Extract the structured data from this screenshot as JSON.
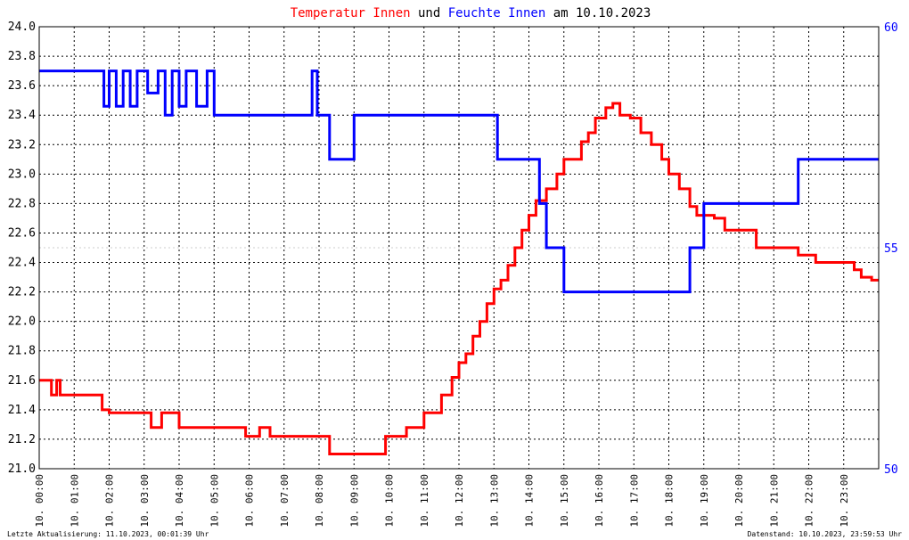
{
  "header": {
    "segments": [
      {
        "text": "Temperatur Innen",
        "color": "#ff0000"
      },
      {
        "text": " und ",
        "color": "#000000"
      },
      {
        "text": "Feuchte Innen",
        "color": "#0000ff"
      },
      {
        "text": " am 10.10.2023",
        "color": "#000000"
      }
    ]
  },
  "footer": {
    "left": "Letzte Aktualisierung: 11.10.2023, 00:01:39 Uhr",
    "right": "Datenstand: 10.10.2023, 23:59:53 Uhr"
  },
  "chart_data": {
    "type": "line",
    "x_unit": "hours",
    "xlim": [
      0,
      24
    ],
    "x_ticks": [
      0,
      1,
      2,
      3,
      4,
      5,
      6,
      7,
      8,
      9,
      10,
      11,
      12,
      13,
      14,
      15,
      16,
      17,
      18,
      19,
      20,
      21,
      22,
      23
    ],
    "x_tick_labels": [
      "10. 00:00",
      "10. 01:00",
      "10. 02:00",
      "10. 03:00",
      "10. 04:00",
      "10. 05:00",
      "10. 06:00",
      "10. 07:00",
      "10. 08:00",
      "10. 09:00",
      "10. 10:00",
      "10. 11:00",
      "10. 12:00",
      "10. 13:00",
      "10. 14:00",
      "10. 15:00",
      "10. 16:00",
      "10. 17:00",
      "10. 18:00",
      "10. 19:00",
      "10. 20:00",
      "10. 21:00",
      "10. 22:00",
      "10. 23:00"
    ],
    "y_left": {
      "min": 21.0,
      "max": 24.0,
      "ticks": [
        "21.0",
        "21.2",
        "21.4",
        "21.6",
        "21.8",
        "22.0",
        "22.2",
        "22.4",
        "22.6",
        "22.8",
        "23.0",
        "23.2",
        "23.4",
        "23.6",
        "23.8",
        "24.0"
      ],
      "color": "#000000"
    },
    "y_right": {
      "min": 50,
      "max": 60,
      "ticks": [
        "50",
        "55",
        "60"
      ],
      "color": "#0000ff"
    },
    "grid": true,
    "series": [
      {
        "name": "Temperatur Innen",
        "color": "#ff0000",
        "axis": "left",
        "x": [
          0,
          0.25,
          0.35,
          0.5,
          0.6,
          0.8,
          1.0,
          1.55,
          1.8,
          2.0,
          2.5,
          2.95,
          3.2,
          3.5,
          4.0,
          4.5,
          5.0,
          5.5,
          5.9,
          6.3,
          6.6,
          7.0,
          7.5,
          8.0,
          8.3,
          8.6,
          9.0,
          9.5,
          9.9,
          10.2,
          10.5,
          10.8,
          11.0,
          11.2,
          11.5,
          11.8,
          12.0,
          12.2,
          12.4,
          12.6,
          12.8,
          13.0,
          13.2,
          13.4,
          13.6,
          13.8,
          14.0,
          14.2,
          14.5,
          14.8,
          15.0,
          15.2,
          15.5,
          15.7,
          15.9,
          16.2,
          16.4,
          16.6,
          16.9,
          17.2,
          17.5,
          17.8,
          18.0,
          18.3,
          18.6,
          18.8,
          19.0,
          19.3,
          19.6,
          19.9,
          20.2,
          20.5,
          21.0,
          21.5,
          21.7,
          22.0,
          22.2,
          22.5,
          23.0,
          23.3,
          23.5,
          23.8,
          24.0
        ],
        "values": [
          21.6,
          21.6,
          21.5,
          21.6,
          21.5,
          21.5,
          21.5,
          21.5,
          21.4,
          21.38,
          21.38,
          21.38,
          21.28,
          21.38,
          21.28,
          21.28,
          21.28,
          21.28,
          21.22,
          21.28,
          21.22,
          21.22,
          21.22,
          21.22,
          21.1,
          21.1,
          21.1,
          21.1,
          21.22,
          21.22,
          21.28,
          21.28,
          21.38,
          21.38,
          21.5,
          21.62,
          21.72,
          21.78,
          21.9,
          22.0,
          22.12,
          22.22,
          22.28,
          22.38,
          22.5,
          22.62,
          22.72,
          22.82,
          22.9,
          23.0,
          23.1,
          23.1,
          23.22,
          23.28,
          23.38,
          23.45,
          23.48,
          23.4,
          23.38,
          23.28,
          23.2,
          23.1,
          23.0,
          22.9,
          22.78,
          22.72,
          22.72,
          22.7,
          22.62,
          22.62,
          22.62,
          22.5,
          22.5,
          22.5,
          22.45,
          22.45,
          22.4,
          22.4,
          22.4,
          22.35,
          22.3,
          22.28,
          22.28
        ]
      },
      {
        "name": "Feuchte Innen",
        "color": "#0000ff",
        "axis": "right",
        "x": [
          0,
          1.8,
          1.85,
          2.0,
          2.2,
          2.4,
          2.6,
          2.8,
          3.1,
          3.4,
          3.6,
          3.8,
          4.0,
          4.2,
          4.5,
          4.8,
          5.0,
          6.0,
          7.0,
          7.7,
          7.8,
          7.95,
          8.1,
          8.3,
          8.5,
          8.8,
          9.0,
          10.0,
          11.0,
          12.0,
          13.0,
          13.1,
          13.2,
          14.0,
          14.3,
          14.5,
          14.8,
          15.0,
          15.5,
          16.0,
          17.0,
          18.0,
          18.4,
          18.6,
          18.9,
          19.0,
          20.0,
          21.0,
          21.6,
          21.7,
          22.0,
          23.0,
          24.0
        ],
        "values": [
          59,
          59,
          58.2,
          59,
          58.2,
          59,
          58.2,
          59,
          58.5,
          59,
          58,
          59,
          58.2,
          59,
          58.2,
          59,
          58,
          58,
          58,
          58,
          59,
          58,
          58,
          57,
          57,
          57,
          58,
          58,
          58,
          58,
          58,
          57,
          57,
          57,
          56,
          55,
          55,
          54,
          54,
          54,
          54,
          54,
          54,
          55,
          55,
          56,
          56,
          56,
          56,
          57,
          57,
          57,
          57
        ]
      }
    ]
  }
}
